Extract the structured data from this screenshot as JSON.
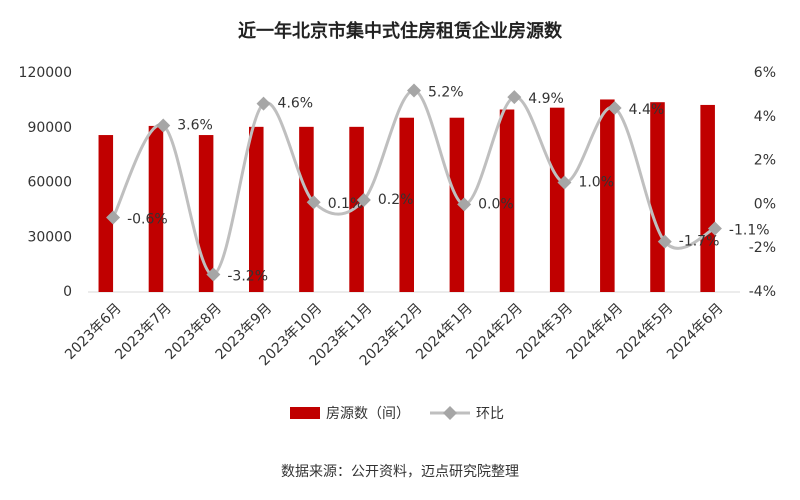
{
  "chart_data": {
    "type": "bar",
    "title": "近一年北京市集中式住房租赁企业房源数",
    "source": "数据来源：公开资料，迈点研究院整理",
    "categories": [
      "2023年6月",
      "2023年7月",
      "2023年8月",
      "2023年9月",
      "2023年10月",
      "2023年11月",
      "2023年12月",
      "2024年1月",
      "2024年2月",
      "2024年3月",
      "2024年4月",
      "2024年5月",
      "2024年6月"
    ],
    "series": [
      {
        "name": "房源数（间）",
        "type": "bar",
        "color": "#c00000",
        "values": [
          86000,
          91000,
          86000,
          90500,
          90500,
          90500,
          95500,
          95500,
          100000,
          101000,
          105500,
          104000,
          102500
        ]
      },
      {
        "name": "环比",
        "type": "line",
        "axis": "y2",
        "color": "#bfbfbf",
        "values": [
          -0.6,
          3.6,
          -3.2,
          4.6,
          0.1,
          0.2,
          5.2,
          0.0,
          4.9,
          1.0,
          4.4,
          -1.7,
          -1.1
        ],
        "value_labels": [
          "-0.6%",
          "3.6%",
          "-3.2%",
          "4.6%",
          "0.1%",
          "0.2%",
          "5.2%",
          "0.0%",
          "4.9%",
          "1.0%",
          "4.4%",
          "-1.7%",
          "-1.1%"
        ]
      }
    ],
    "ylim": [
      0,
      120000
    ],
    "yticks": [
      0,
      30000,
      60000,
      90000,
      120000
    ],
    "y2lim": [
      -4,
      6
    ],
    "y2ticks": [
      {
        "value": -4,
        "label": "-4%"
      },
      {
        "value": -2,
        "label": "-2%"
      },
      {
        "value": 0,
        "label": "0%"
      },
      {
        "value": 2,
        "label": "2%"
      },
      {
        "value": 4,
        "label": "4%"
      },
      {
        "value": 6,
        "label": "6%"
      }
    ]
  }
}
